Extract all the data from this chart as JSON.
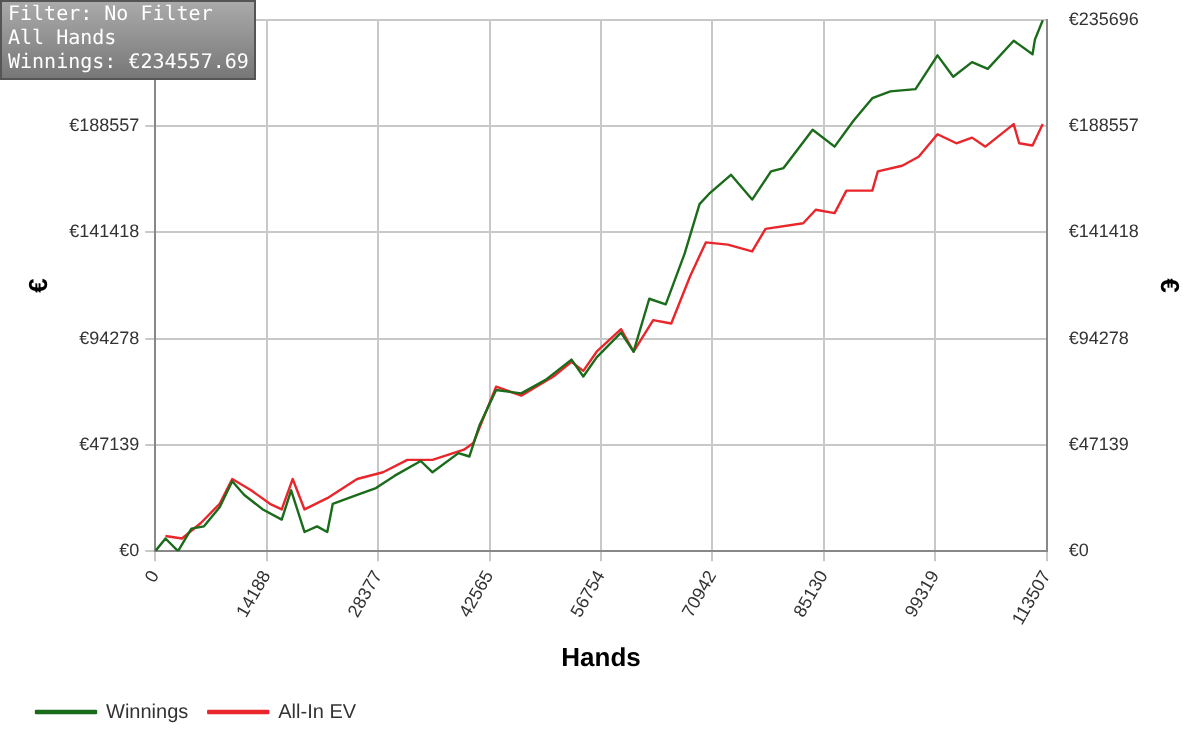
{
  "chart_data": {
    "type": "line",
    "xlabel": "Hands",
    "ylabel": "€",
    "y2label": "€",
    "annotations": [
      "Filter: No Filter",
      "All Hands",
      "Winnings: €234557.69"
    ],
    "xlim": [
      0,
      113507
    ],
    "xticks": [
      0,
      14188,
      28377,
      42565,
      56754,
      70942,
      85130,
      99319,
      113507
    ],
    "ylim": [
      0,
      235696
    ],
    "yticks": [
      {
        "value": 0,
        "label": "€0"
      },
      {
        "value": 47139,
        "label": "€47139"
      },
      {
        "value": 94278,
        "label": "€94278"
      },
      {
        "value": 141418,
        "label": "€141418"
      },
      {
        "value": 188557,
        "label": "€188557"
      },
      {
        "value": 235696,
        "label": null
      }
    ],
    "y2lim": [
      0,
      235696
    ],
    "y2ticks": [
      {
        "value": 0,
        "label": "€0"
      },
      {
        "value": 47139,
        "label": "€47139"
      },
      {
        "value": 94278,
        "label": "€94278"
      },
      {
        "value": 141418,
        "label": "€141418"
      },
      {
        "value": 188557,
        "label": "€188557"
      },
      {
        "value": 235696,
        "label": "€235696"
      }
    ],
    "grid": true,
    "legend": "bottom left",
    "marker": "none",
    "line_style": "solid",
    "series": [
      {
        "name": "Winnings",
        "color": "#1a6b1a",
        "x": [
          0,
          1300,
          2900,
          4600,
          6200,
          8200,
          9800,
          11300,
          13700,
          16100,
          17300,
          19000,
          20600,
          21900,
          22600,
          25700,
          28100,
          30500,
          33800,
          35300,
          38600,
          40000,
          41300,
          43400,
          46600,
          49700,
          53000,
          54500,
          56200,
          59300,
          60900,
          62900,
          65000,
          67400,
          69300,
          70500,
          73300,
          76000,
          78400,
          80000,
          83700,
          86500,
          88900,
          91300,
          93600,
          96800,
          99600,
          101600,
          104000,
          106000,
          109300,
          111700,
          112000,
          113000
        ],
        "values": [
          0,
          5600,
          0,
          10000,
          11000,
          19500,
          31000,
          25000,
          18500,
          14000,
          27000,
          8500,
          11000,
          8500,
          21000,
          25000,
          28000,
          33500,
          40000,
          35000,
          43500,
          42000,
          56000,
          71500,
          70000,
          76000,
          85000,
          77500,
          86000,
          97000,
          88500,
          112000,
          109500,
          132000,
          154000,
          158500,
          167000,
          156000,
          168500,
          170000,
          187000,
          179500,
          191000,
          201000,
          204000,
          205000,
          220000,
          210500,
          217000,
          214000,
          226500,
          220500,
          227000,
          235600
        ]
      },
      {
        "name": "All-In EV",
        "color": "#e8262b",
        "x": [
          1300,
          3400,
          5800,
          8200,
          9800,
          12200,
          14600,
          16100,
          17500,
          19000,
          21900,
          25700,
          29000,
          32100,
          35300,
          39300,
          40500,
          43400,
          46600,
          50700,
          53000,
          54500,
          56200,
          59300,
          60900,
          63400,
          65700,
          68100,
          70100,
          72900,
          76000,
          77700,
          82500,
          84100,
          86500,
          88000,
          91300,
          92000,
          95100,
          97200,
          99600,
          102000,
          104000,
          105700,
          109300,
          110000,
          111700,
          113000
        ],
        "values": [
          6700,
          5600,
          12500,
          21000,
          32000,
          27000,
          21000,
          18500,
          32000,
          18500,
          23500,
          32000,
          35000,
          40500,
          40500,
          45000,
          48000,
          73000,
          69000,
          77500,
          84000,
          80000,
          88500,
          98500,
          88500,
          102500,
          101000,
          122000,
          137000,
          136000,
          133000,
          143000,
          145500,
          151500,
          150000,
          160000,
          160000,
          168500,
          171000,
          175000,
          185000,
          181000,
          183500,
          179500,
          189500,
          181000,
          180000,
          189500
        ]
      }
    ]
  }
}
